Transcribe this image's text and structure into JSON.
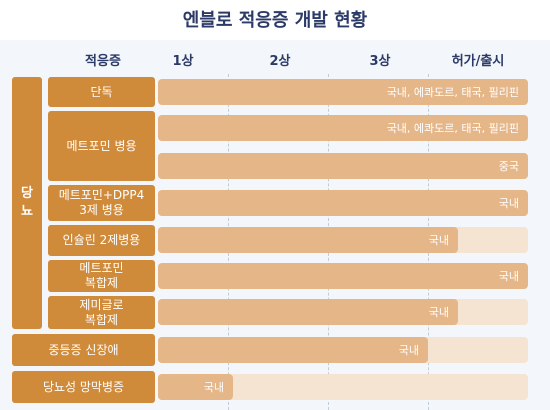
{
  "title": "엔블로 적응증 개발 현황",
  "columns": [
    "적응증",
    "1상",
    "2상",
    "3상",
    "허가/출시"
  ],
  "group_label": "당\n뇨",
  "indications": [
    "단독",
    "메트포민 병용",
    "메트포민+DPP4\n3제 병용",
    "인슐린 2제병용",
    "메트포민\n복합제",
    "제미글로\n복합제",
    "중등증 신장애",
    "당뇨성 망막병증"
  ],
  "bars": [
    {
      "label": "국내, 에콰도르, 태국, 필리핀",
      "stage": 4.0
    },
    {
      "label": "국내, 에콰도르, 태국, 필리핀",
      "stage": 4.0
    },
    {
      "label": "중국",
      "stage": 3.7
    },
    {
      "label": "국내",
      "stage": 4.0
    },
    {
      "label": "국내",
      "stage": 3.0
    },
    {
      "label": "국내",
      "stage": 4.0
    },
    {
      "label": "국내",
      "stage": 3.0
    },
    {
      "label": "국내",
      "stage": 2.7
    },
    {
      "label": "국내",
      "stage": 0.75
    }
  ],
  "colors": {
    "category": "#cf8a3a",
    "bar": "#e5b688",
    "bar_track": "#f6e4d3",
    "title": "#2b3a67"
  }
}
